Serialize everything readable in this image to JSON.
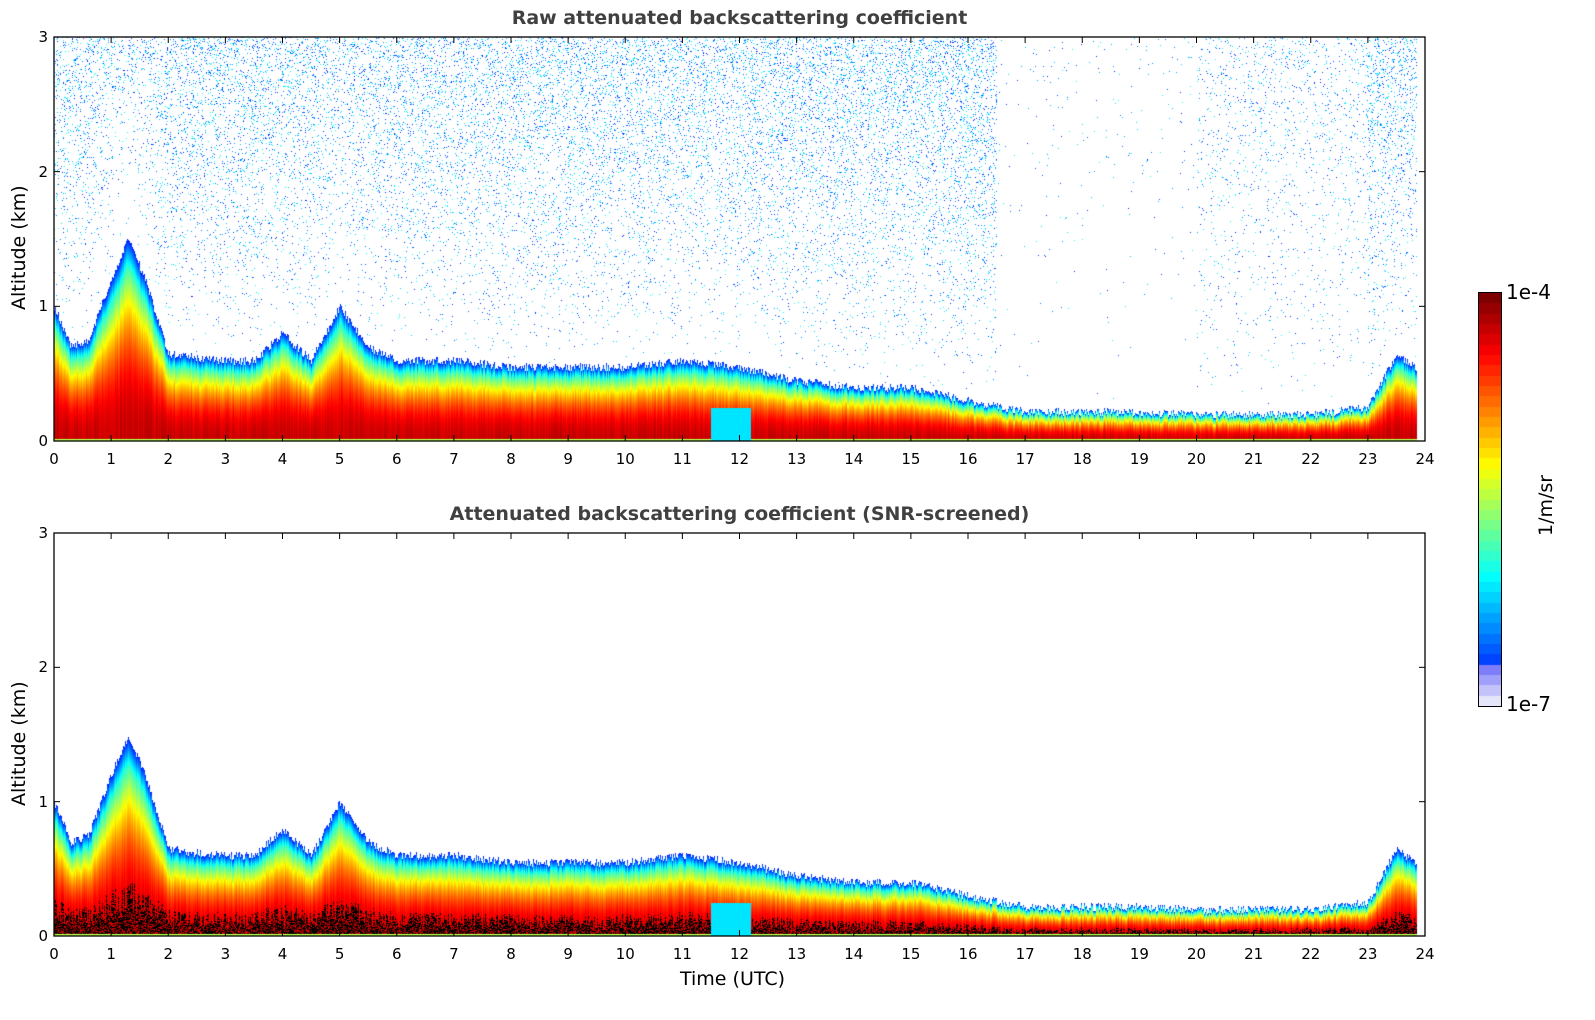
{
  "chart_data": [
    {
      "type": "heatmap",
      "title": "Raw attenuated backscattering coefficient",
      "xlabel": "",
      "ylabel": "Altitude (km)",
      "xlim": [
        0,
        24
      ],
      "ylim": [
        0,
        3
      ],
      "xticks": [
        "0",
        "1",
        "2",
        "3",
        "4",
        "5",
        "6",
        "7",
        "8",
        "9",
        "10",
        "11",
        "12",
        "13",
        "14",
        "15",
        "16",
        "17",
        "18",
        "19",
        "20",
        "21",
        "22",
        "23",
        "24"
      ],
      "yticks": [
        "0",
        "1",
        "2",
        "3"
      ],
      "layer_top_km": {
        "time_utc": [
          0,
          0.3,
          0.6,
          1.0,
          1.3,
          1.6,
          2.0,
          2.5,
          3.0,
          3.5,
          4.0,
          4.5,
          5.0,
          5.5,
          6.0,
          7.0,
          8.0,
          9.0,
          10.0,
          11.0,
          12.0,
          13.0,
          14.0,
          15.0,
          16.0,
          17.0,
          18.0,
          19.0,
          20.0,
          21.0,
          22.0,
          23.0,
          23.5,
          23.8
        ],
        "altitude": [
          1.0,
          0.7,
          0.75,
          1.2,
          1.5,
          1.2,
          0.65,
          0.62,
          0.6,
          0.6,
          0.8,
          0.6,
          1.0,
          0.7,
          0.6,
          0.6,
          0.55,
          0.55,
          0.55,
          0.6,
          0.55,
          0.45,
          0.4,
          0.4,
          0.3,
          0.22,
          0.22,
          0.22,
          0.2,
          0.2,
          0.2,
          0.25,
          0.65,
          0.55
        ]
      },
      "noise_above_layer": true
    },
    {
      "type": "heatmap",
      "title": "Attenuated backscattering coefficient (SNR-screened)",
      "xlabel": "Time (UTC)",
      "ylabel": "Altitude (km)",
      "xlim": [
        0,
        24
      ],
      "ylim": [
        0,
        3
      ],
      "xticks": [
        "0",
        "1",
        "2",
        "3",
        "4",
        "5",
        "6",
        "7",
        "8",
        "9",
        "10",
        "11",
        "12",
        "13",
        "14",
        "15",
        "16",
        "17",
        "18",
        "19",
        "20",
        "21",
        "22",
        "23",
        "24"
      ],
      "yticks": [
        "0",
        "1",
        "2",
        "3"
      ],
      "noise_above_layer": false,
      "saturated_color": "#000000"
    }
  ],
  "colorbar": {
    "label": "1/m/sr",
    "max_label": "1e-4",
    "min_label": "1e-7",
    "colormap": "jet",
    "scale": "log"
  }
}
